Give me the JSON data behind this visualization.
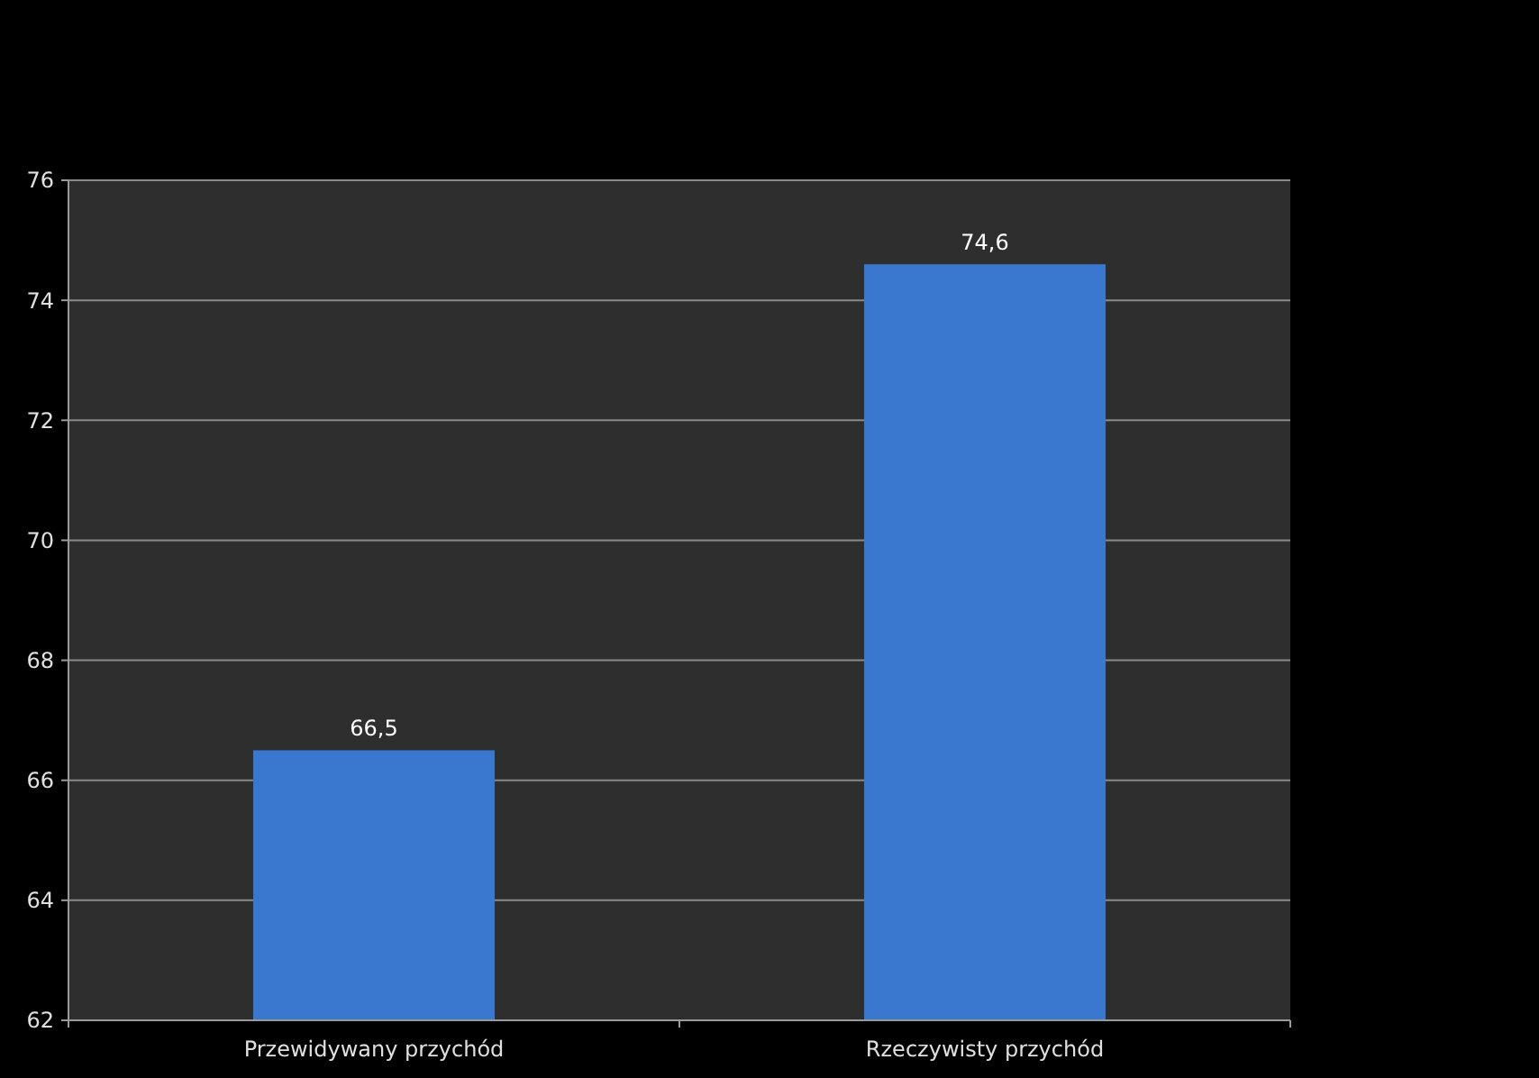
{
  "chart_data": {
    "type": "bar",
    "categories": [
      "Przewidywany przychód",
      "Rzeczywisty przychód"
    ],
    "values": [
      66.5,
      74.6
    ],
    "value_labels": [
      "66,5",
      "74,6"
    ],
    "color": "#3a78cf",
    "ylim": [
      62,
      76
    ],
    "yticks": [
      62,
      64,
      66,
      68,
      70,
      72,
      74,
      76
    ],
    "grid": "y"
  }
}
